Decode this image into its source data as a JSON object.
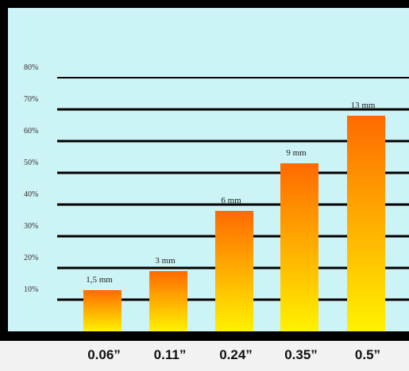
{
  "colors": {
    "frame": "#000000",
    "plot_bg": "#ccf3f5",
    "gridline": "#000000",
    "bar_top": "#ff6a00",
    "bar_bottom": "#fff200",
    "page_bg": "#f2f2f2"
  },
  "chart_data": {
    "type": "bar",
    "categories": [
      "0.06”",
      "0.11”",
      "0.24”",
      "0.35”",
      "0.5”"
    ],
    "values": [
      13,
      19,
      38,
      53,
      68
    ],
    "bar_labels": [
      "1,5 mm",
      "3 mm",
      "6 mm",
      "9 mm",
      "13 mm"
    ],
    "y_ticks": [
      10,
      20,
      30,
      40,
      50,
      60,
      70,
      80
    ],
    "y_tick_labels": [
      "10%",
      "20%",
      "30%",
      "40%",
      "50%",
      "60%",
      "70%",
      "80%"
    ],
    "ylim": [
      0,
      82
    ],
    "grid": true,
    "title": "",
    "xlabel": "",
    "ylabel": ""
  }
}
